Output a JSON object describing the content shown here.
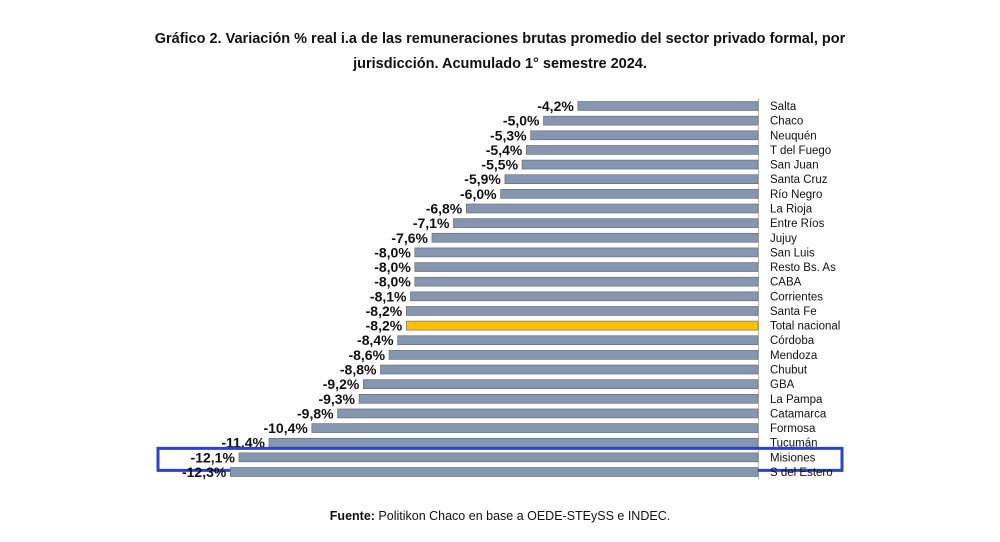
{
  "title_line1": "Gráfico 2. Variación % real i.a de las remuneraciones brutas promedio del sector privado formal, por",
  "title_line2": "jurisdicción. Acumulado 1° semestre 2024.",
  "source_label": "Fuente:",
  "source_text": " Politikon Chaco en base a OEDE-STEySS e INDEC.",
  "colors": {
    "bar": "#8496b0",
    "highlight_bar": "#ffc000",
    "highlight_box": "#2c3fd6"
  },
  "chart_data": {
    "type": "bar",
    "orientation": "horizontal",
    "categories": [
      "Salta",
      "Chaco",
      "Neuquén",
      "T del Fuego",
      "San Juan",
      "Santa Cruz",
      "Río Negro",
      "La Rioja",
      "Entre Ríos",
      "Jujuy",
      "San Luis",
      "Resto Bs. As",
      "CABA",
      "Corrientes",
      "Santa Fe",
      "Total nacional",
      "Córdoba",
      "Mendoza",
      "Chubut",
      "GBA",
      "La Pampa",
      "Catamarca",
      "Formosa",
      "Tucumán",
      "Misiones",
      "S del Estero"
    ],
    "values": [
      -4.2,
      -5.0,
      -5.3,
      -5.4,
      -5.5,
      -5.9,
      -6.0,
      -6.8,
      -7.1,
      -7.6,
      -8.0,
      -8.0,
      -8.0,
      -8.1,
      -8.2,
      -8.2,
      -8.4,
      -8.6,
      -8.8,
      -9.2,
      -9.3,
      -9.8,
      -10.4,
      -11.4,
      -12.1,
      -12.3
    ],
    "data_labels": [
      "-4,2%",
      "-5,0%",
      "-5,3%",
      "-5,4%",
      "-5,5%",
      "-5,9%",
      "-6,0%",
      "-6,8%",
      "-7,1%",
      "-7,6%",
      "-8,0%",
      "-8,0%",
      "-8,0%",
      "-8,1%",
      "-8,2%",
      "-8,2%",
      "-8,4%",
      "-8,6%",
      "-8,8%",
      "-9,2%",
      "-9,3%",
      "-9,8%",
      "-10,4%",
      "-11,4%",
      "-12,1%",
      "-12,3%"
    ],
    "highlighted_category": "Total nacional",
    "boxed_category": "Misiones",
    "grid": false,
    "legend": "none"
  }
}
